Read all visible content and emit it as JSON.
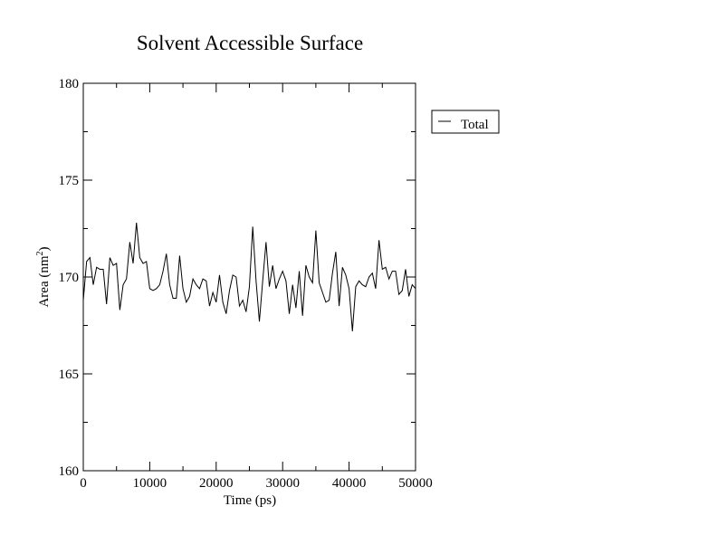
{
  "chart_data": {
    "type": "line",
    "title": "Solvent Accessible Surface",
    "xlabel": "Time (ps)",
    "ylabel": "Area (nm",
    "ylabel_sup": "2",
    "ylabel_close": ")",
    "xlim": [
      0,
      50000
    ],
    "ylim": [
      160,
      180
    ],
    "x_major_ticks": [
      0,
      10000,
      20000,
      30000,
      40000,
      50000
    ],
    "x_tick_labels": [
      "0",
      "10000",
      "20000",
      "30000",
      "40000",
      "50000"
    ],
    "y_major_ticks": [
      160,
      165,
      170,
      175,
      180
    ],
    "y_tick_labels": [
      "160",
      "165",
      "170",
      "175",
      "180"
    ],
    "grid": false,
    "legend_position": "right",
    "series": [
      {
        "name": "Total",
        "color": "#000000",
        "x": [
          0,
          500,
          1000,
          1500,
          2000,
          2500,
          3000,
          3500,
          4000,
          4500,
          5000,
          5500,
          6000,
          6500,
          7000,
          7500,
          8000,
          8500,
          9000,
          9500,
          10000,
          10500,
          11000,
          11500,
          12000,
          12500,
          13000,
          13500,
          14000,
          14500,
          15000,
          15500,
          16000,
          16500,
          17000,
          17500,
          18000,
          18500,
          19000,
          19500,
          20000,
          20500,
          21000,
          21500,
          22000,
          22500,
          23000,
          23500,
          24000,
          24500,
          25000,
          25500,
          26000,
          26500,
          27000,
          27500,
          28000,
          28500,
          29000,
          29500,
          30000,
          30500,
          31000,
          31500,
          32000,
          32500,
          33000,
          33500,
          34000,
          34500,
          35000,
          35500,
          36000,
          36500,
          37000,
          37500,
          38000,
          38500,
          39000,
          39500,
          40000,
          40500,
          41000,
          41500,
          42000,
          42500,
          43000,
          43500,
          44000,
          44500,
          45000,
          45500,
          46000,
          46500,
          47000,
          47500,
          48000,
          48500,
          49000,
          49500,
          50000
        ],
        "y": [
          168.8,
          170.8,
          171.0,
          169.6,
          170.5,
          170.4,
          170.4,
          168.6,
          171.0,
          170.6,
          170.7,
          168.3,
          169.6,
          169.9,
          171.8,
          170.7,
          172.8,
          171.0,
          170.7,
          170.8,
          169.4,
          169.3,
          169.4,
          169.6,
          170.3,
          171.2,
          169.6,
          168.9,
          168.9,
          171.1,
          169.4,
          168.7,
          169.0,
          169.9,
          169.6,
          169.4,
          169.9,
          169.8,
          168.5,
          169.2,
          168.7,
          170.1,
          168.7,
          168.1,
          169.3,
          170.1,
          170.0,
          168.5,
          168.8,
          168.2,
          169.5,
          172.6,
          169.8,
          167.7,
          169.8,
          171.8,
          169.5,
          170.6,
          169.4,
          169.9,
          170.3,
          169.8,
          168.1,
          169.6,
          168.4,
          170.3,
          168.0,
          170.6,
          170.0,
          169.7,
          172.4,
          169.7,
          169.2,
          168.7,
          168.8,
          170.2,
          171.3,
          168.5,
          170.5,
          170.1,
          169.4,
          167.2,
          169.5,
          169.8,
          169.6,
          169.5,
          170.0,
          170.2,
          169.4,
          171.9,
          170.4,
          170.5,
          169.9,
          170.3,
          170.3,
          169.1,
          169.3,
          170.4,
          169.0,
          169.6,
          169.4
        ]
      }
    ]
  }
}
